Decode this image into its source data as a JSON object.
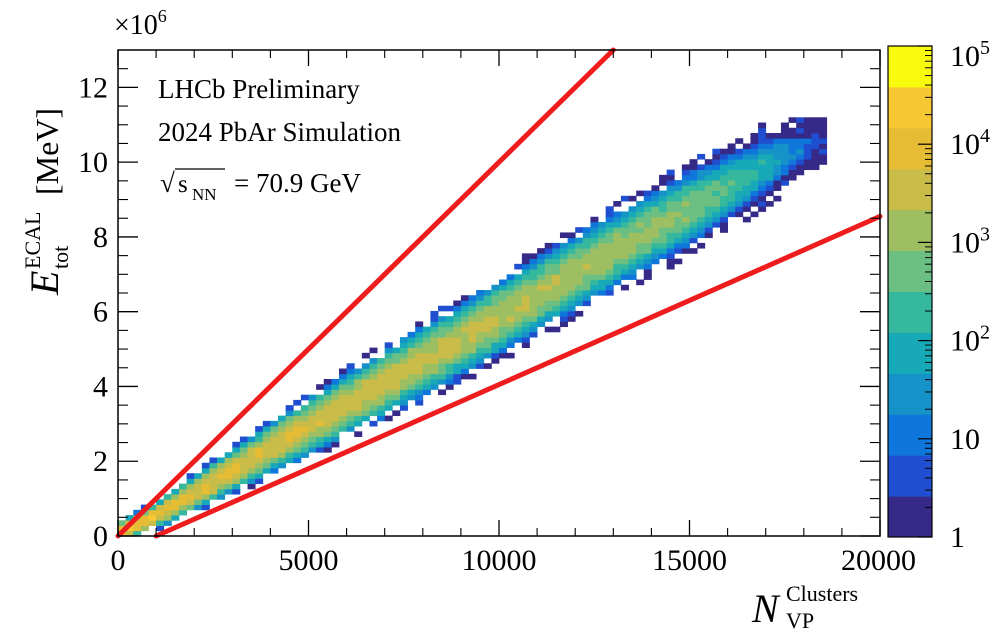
{
  "chart_data": {
    "type": "heatmap",
    "title": "",
    "xlabel": {
      "base": "N",
      "sup": "Clusters",
      "sub": "VP"
    },
    "ylabel": {
      "base": "E",
      "sup": "ECAL",
      "sub": "tot",
      "unit": "[MeV]"
    },
    "xlim": [
      0,
      20000
    ],
    "ylim": [
      0,
      13
    ],
    "y_multiplier": "×10",
    "y_multiplier_exp": "6",
    "x_ticks": [
      {
        "value": 0,
        "label": "0"
      },
      {
        "value": 5000,
        "label": "5000"
      },
      {
        "value": 10000,
        "label": "10000"
      },
      {
        "value": 15000,
        "label": "15000"
      },
      {
        "value": 20000,
        "label": "20000"
      }
    ],
    "y_ticks": [
      {
        "value": 0,
        "label": "0"
      },
      {
        "value": 2,
        "label": "2"
      },
      {
        "value": 4,
        "label": "4"
      },
      {
        "value": 6,
        "label": "6"
      },
      {
        "value": 8,
        "label": "8"
      },
      {
        "value": 10,
        "label": "10"
      },
      {
        "value": 12,
        "label": "12"
      }
    ],
    "annotations": {
      "line1": "LHCb Preliminary",
      "line2": "2024 PbAr Simulation",
      "energy_sqrt_symbol": "√",
      "energy_var": "s",
      "energy_sub": "NN",
      "energy_value": "= 70.9 GeV"
    },
    "colorbar": {
      "scale": "log",
      "range": [
        1,
        100000
      ],
      "ticks": [
        {
          "value": 1,
          "label": "1"
        },
        {
          "value": 10,
          "label": "10"
        },
        {
          "value": 100,
          "label": "10",
          "exp": "2"
        },
        {
          "value": 1000,
          "label": "10",
          "exp": "3"
        },
        {
          "value": 10000,
          "label": "10",
          "exp": "4"
        },
        {
          "value": 100000,
          "label": "10",
          "exp": "5"
        }
      ],
      "stops": [
        "#352a87",
        "#1f4fd0",
        "#0f76db",
        "#1593c9",
        "#17a9b8",
        "#35b89d",
        "#6bbf82",
        "#9dbf62",
        "#c9bc48",
        "#e6bc35",
        "#f7c831",
        "#f9fb0e"
      ]
    },
    "density_band": {
      "description": "Events concentrated along E ≈ 0.6e6 per 1000 clusters",
      "points": [
        {
          "x": 0,
          "y_center": 0.1,
          "half_width": 0.25,
          "peak_log": 4.8
        },
        {
          "x": 1000,
          "y_center": 0.55,
          "half_width": 0.35,
          "peak_log": 4.4
        },
        {
          "x": 2500,
          "y_center": 1.45,
          "half_width": 0.55,
          "peak_log": 4.2
        },
        {
          "x": 5000,
          "y_center": 2.95,
          "half_width": 0.8,
          "peak_log": 4.0
        },
        {
          "x": 7500,
          "y_center": 4.4,
          "half_width": 0.95,
          "peak_log": 3.9
        },
        {
          "x": 10000,
          "y_center": 5.85,
          "half_width": 1.05,
          "peak_log": 3.7
        },
        {
          "x": 12500,
          "y_center": 7.35,
          "half_width": 1.1,
          "peak_log": 3.5
        },
        {
          "x": 15000,
          "y_center": 8.75,
          "half_width": 1.1,
          "peak_log": 3.2
        },
        {
          "x": 17000,
          "y_center": 9.9,
          "half_width": 1.0,
          "peak_log": 2.2
        },
        {
          "x": 18500,
          "y_center": 10.6,
          "half_width": 0.55,
          "peak_log": 0.6
        }
      ]
    },
    "cut_lines": [
      {
        "name": "upper-cut",
        "color": "#ee1c1c",
        "x": [
          0,
          13000
        ],
        "y": [
          0,
          13
        ]
      },
      {
        "name": "lower-cut",
        "color": "#ee1c1c",
        "x": [
          1000,
          20000
        ],
        "y": [
          0,
          8.55
        ]
      }
    ]
  }
}
